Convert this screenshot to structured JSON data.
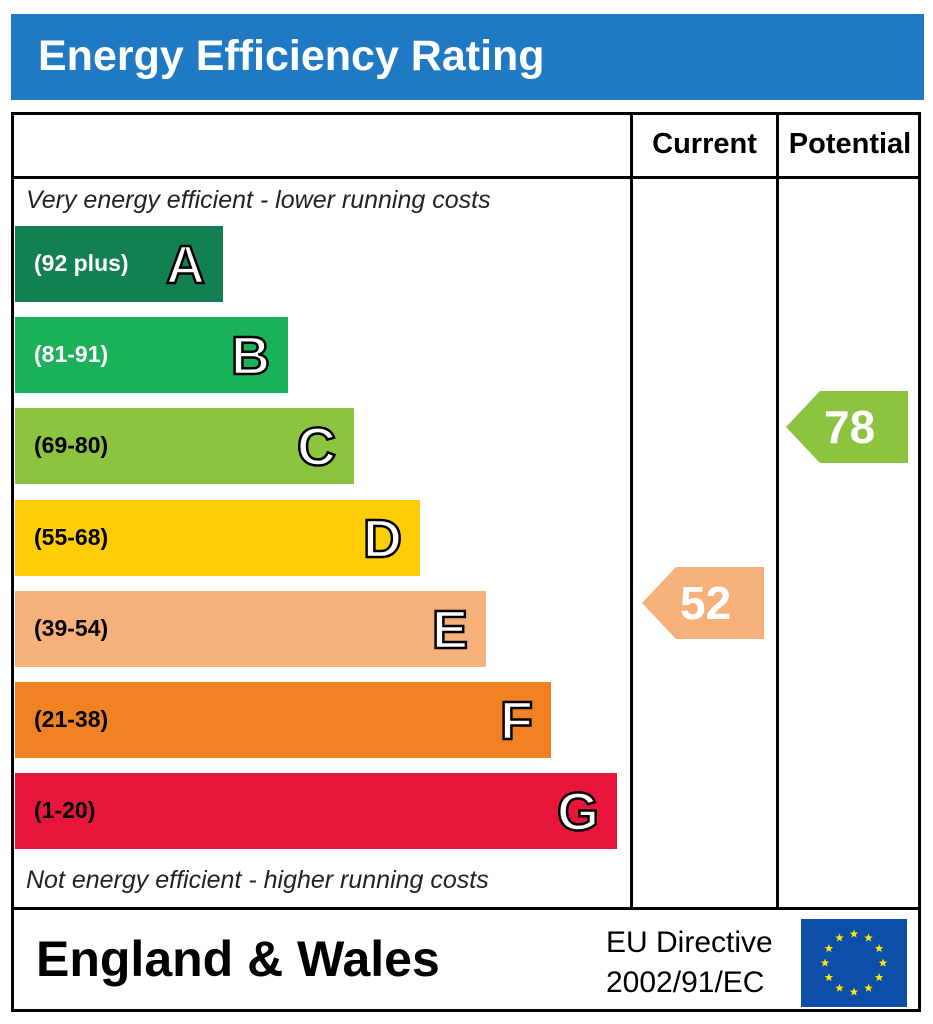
{
  "title": "Energy Efficiency Rating",
  "columns": {
    "current": "Current",
    "potential": "Potential"
  },
  "notes": {
    "top": "Very energy efficient - lower running costs",
    "bottom": "Not energy efficient - higher running costs"
  },
  "footer": {
    "region": "England & Wales",
    "directive_line1": "EU Directive",
    "directive_line2": "2002/91/EC"
  },
  "chart_data": {
    "type": "bar",
    "title": "Energy Efficiency Rating",
    "categories": [
      "A",
      "B",
      "C",
      "D",
      "E",
      "F",
      "G"
    ],
    "ranges": [
      "(92 plus)",
      "(81-91)",
      "(69-80)",
      "(55-68)",
      "(39-54)",
      "(21-38)",
      "(1-20)"
    ],
    "band_colors": [
      "#138054",
      "#1bb15b",
      "#8cc33f",
      "#fecd07",
      "#f6b07a",
      "#f08223",
      "#e9163b"
    ],
    "range_text_colors": [
      "#ffffff",
      "#ffffff",
      "#000000",
      "#000000",
      "#000000",
      "#000000",
      "#000000"
    ],
    "current": {
      "value": 52,
      "band": "E",
      "color": "#f6b07a"
    },
    "potential": {
      "value": 78,
      "band": "C",
      "color": "#8cc33f"
    }
  }
}
